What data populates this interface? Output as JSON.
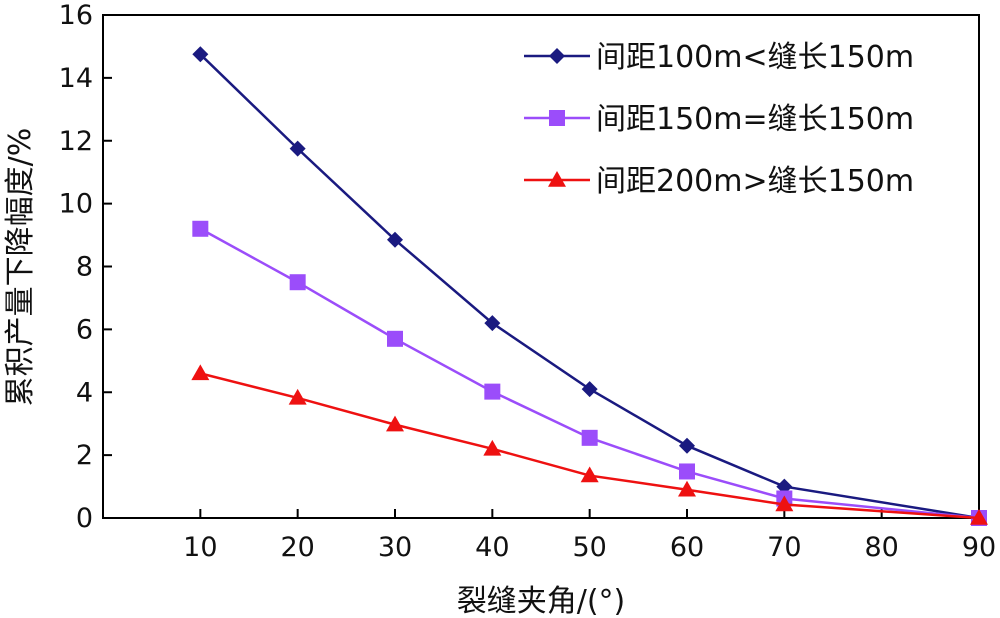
{
  "chart_data": {
    "type": "line",
    "x": [
      10,
      20,
      30,
      40,
      50,
      60,
      70,
      90
    ],
    "series": [
      {
        "name": "间距100m<缝长150m",
        "color": "#1a1a80",
        "marker": "diamond",
        "values": [
          14.75,
          11.75,
          8.85,
          6.2,
          4.1,
          2.3,
          1.0,
          0
        ]
      },
      {
        "name": "间距150m=缝长150m",
        "color": "#9b4dfa",
        "marker": "square",
        "values": [
          9.2,
          7.5,
          5.7,
          4.02,
          2.55,
          1.48,
          0.62,
          0
        ]
      },
      {
        "name": "间距200m>缝长150m",
        "color": "#ee1111",
        "marker": "triangle",
        "values": [
          4.6,
          3.82,
          2.97,
          2.2,
          1.35,
          0.9,
          0.43,
          0
        ]
      }
    ],
    "xlabel": "裂缝夹角/(°)",
    "ylabel": "累积产量下降幅度/%",
    "xlim": [
      0,
      90
    ],
    "ylim": [
      0,
      16
    ],
    "xticks": [
      "10",
      "20",
      "30",
      "40",
      "50",
      "60",
      "70",
      "80",
      "90"
    ],
    "yticks": [
      "0",
      "2",
      "4",
      "6",
      "8",
      "10",
      "12",
      "14",
      "16"
    ],
    "grid": false,
    "legend_position": "top-right"
  }
}
